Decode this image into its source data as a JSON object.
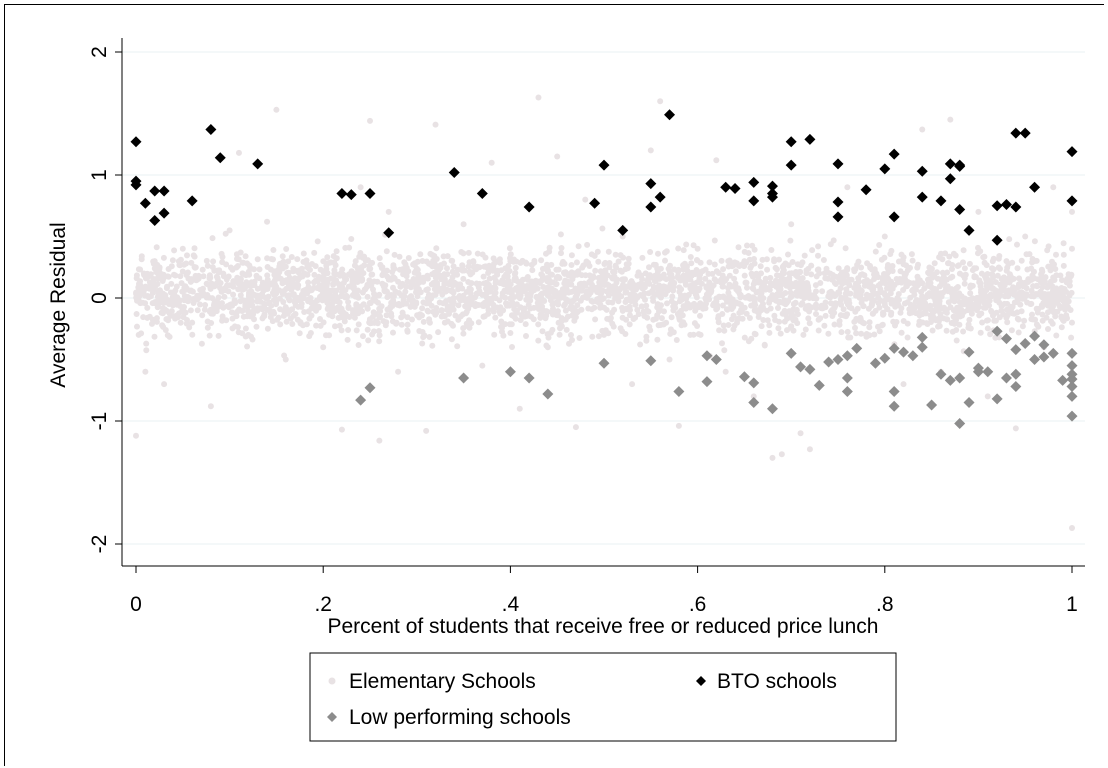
{
  "chart_data": {
    "type": "scatter",
    "title": "",
    "xlabel": "Percent of students that receive free or reduced price lunch",
    "ylabel": "Average Residual",
    "xlim": [
      0,
      1
    ],
    "ylim": [
      -2,
      2
    ],
    "x_ticks": [
      {
        "value": 0,
        "label": "0"
      },
      {
        "value": 0.2,
        "label": ".2"
      },
      {
        "value": 0.4,
        "label": ".4"
      },
      {
        "value": 0.6,
        "label": ".6"
      },
      {
        "value": 0.8,
        "label": ".8"
      },
      {
        "value": 1,
        "label": "1"
      }
    ],
    "y_ticks": [
      {
        "value": -2,
        "label": "-2"
      },
      {
        "value": -1,
        "label": "-1"
      },
      {
        "value": 0,
        "label": "0"
      },
      {
        "value": 1,
        "label": "1"
      },
      {
        "value": 2,
        "label": "2"
      }
    ],
    "grid": "horizontal",
    "legend_position": "bottom",
    "series": [
      {
        "name": "Elementary Schools",
        "color": "#e8e2e4",
        "marker": "circle",
        "points": [
          [
            0.0,
            -1.12
          ],
          [
            0.01,
            -0.6
          ],
          [
            0.02,
            0.3
          ],
          [
            0.03,
            -0.7
          ],
          [
            0.05,
            0.4
          ],
          [
            0.06,
            -0.2
          ],
          [
            0.08,
            -0.88
          ],
          [
            0.1,
            0.55
          ],
          [
            0.11,
            1.18
          ],
          [
            0.12,
            -0.3
          ],
          [
            0.14,
            0.62
          ],
          [
            0.15,
            1.53
          ],
          [
            0.16,
            -0.5
          ],
          [
            0.18,
            0.2
          ],
          [
            0.2,
            -0.4
          ],
          [
            0.22,
            -1.07
          ],
          [
            0.23,
            0.48
          ],
          [
            0.24,
            0.9
          ],
          [
            0.25,
            1.44
          ],
          [
            0.26,
            -1.16
          ],
          [
            0.27,
            0.7
          ],
          [
            0.28,
            -0.6
          ],
          [
            0.3,
            0.1
          ],
          [
            0.31,
            -1.08
          ],
          [
            0.32,
            1.41
          ],
          [
            0.33,
            -0.2
          ],
          [
            0.35,
            0.6
          ],
          [
            0.37,
            -0.55
          ],
          [
            0.38,
            1.1
          ],
          [
            0.4,
            0.3
          ],
          [
            0.41,
            -0.9
          ],
          [
            0.43,
            1.63
          ],
          [
            0.44,
            -0.4
          ],
          [
            0.45,
            1.15
          ],
          [
            0.46,
            0.2
          ],
          [
            0.47,
            -1.05
          ],
          [
            0.48,
            0.8
          ],
          [
            0.5,
            -0.3
          ],
          [
            0.52,
            0.5
          ],
          [
            0.53,
            -0.7
          ],
          [
            0.55,
            1.2
          ],
          [
            0.56,
            1.6
          ],
          [
            0.57,
            -0.5
          ],
          [
            0.58,
            -1.04
          ],
          [
            0.6,
            0.4
          ],
          [
            0.62,
            1.12
          ],
          [
            0.63,
            -0.6
          ],
          [
            0.65,
            0.3
          ],
          [
            0.66,
            -0.8
          ],
          [
            0.68,
            -1.3
          ],
          [
            0.69,
            -1.27
          ],
          [
            0.7,
            0.6
          ],
          [
            0.71,
            -1.1
          ],
          [
            0.72,
            -1.23
          ],
          [
            0.73,
            0.2
          ],
          [
            0.75,
            -0.5
          ],
          [
            0.76,
            0.9
          ],
          [
            0.78,
            -0.3
          ],
          [
            0.8,
            0.5
          ],
          [
            0.82,
            -0.7
          ],
          [
            0.84,
            1.37
          ],
          [
            0.85,
            0.2
          ],
          [
            0.86,
            -0.6
          ],
          [
            0.87,
            1.45
          ],
          [
            0.88,
            -0.1
          ],
          [
            0.9,
            0.7
          ],
          [
            0.91,
            -0.8
          ],
          [
            0.93,
            0.3
          ],
          [
            0.94,
            -1.06
          ],
          [
            0.95,
            0.5
          ],
          [
            0.97,
            -0.4
          ],
          [
            0.98,
            0.9
          ],
          [
            1.0,
            -1.87
          ],
          [
            1.0,
            0.4
          ],
          [
            1.0,
            -0.2
          ],
          [
            1.0,
            0.7
          ]
        ],
        "dense_band": {
          "y_center": 0.05,
          "y_spread": 0.42,
          "count": 3400
        }
      },
      {
        "name": "BTO schools",
        "color": "#000000",
        "marker": "diamond",
        "points": [
          [
            0.0,
            1.27
          ],
          [
            0.0,
            0.95
          ],
          [
            0.0,
            0.92
          ],
          [
            0.01,
            0.77
          ],
          [
            0.02,
            0.63
          ],
          [
            0.02,
            0.87
          ],
          [
            0.03,
            0.87
          ],
          [
            0.03,
            0.69
          ],
          [
            0.06,
            0.79
          ],
          [
            0.08,
            1.37
          ],
          [
            0.09,
            1.14
          ],
          [
            0.13,
            1.09
          ],
          [
            0.22,
            0.85
          ],
          [
            0.23,
            0.84
          ],
          [
            0.25,
            0.85
          ],
          [
            0.27,
            0.53
          ],
          [
            0.34,
            1.02
          ],
          [
            0.37,
            0.85
          ],
          [
            0.42,
            0.74
          ],
          [
            0.49,
            0.77
          ],
          [
            0.5,
            1.08
          ],
          [
            0.52,
            0.55
          ],
          [
            0.55,
            0.93
          ],
          [
            0.55,
            0.74
          ],
          [
            0.56,
            0.82
          ],
          [
            0.57,
            1.49
          ],
          [
            0.63,
            0.9
          ],
          [
            0.64,
            0.89
          ],
          [
            0.66,
            0.79
          ],
          [
            0.66,
            0.94
          ],
          [
            0.68,
            0.91
          ],
          [
            0.68,
            0.85
          ],
          [
            0.68,
            0.82
          ],
          [
            0.7,
            1.08
          ],
          [
            0.7,
            1.27
          ],
          [
            0.72,
            1.29
          ],
          [
            0.75,
            0.66
          ],
          [
            0.75,
            0.78
          ],
          [
            0.75,
            1.09
          ],
          [
            0.78,
            0.88
          ],
          [
            0.8,
            1.05
          ],
          [
            0.81,
            1.17
          ],
          [
            0.81,
            0.66
          ],
          [
            0.84,
            1.03
          ],
          [
            0.84,
            0.82
          ],
          [
            0.86,
            0.79
          ],
          [
            0.87,
            1.09
          ],
          [
            0.87,
            0.97
          ],
          [
            0.88,
            1.08
          ],
          [
            0.88,
            0.72
          ],
          [
            0.88,
            1.07
          ],
          [
            0.89,
            0.55
          ],
          [
            0.92,
            0.47
          ],
          [
            0.92,
            0.75
          ],
          [
            0.93,
            0.76
          ],
          [
            0.94,
            0.74
          ],
          [
            0.94,
            1.34
          ],
          [
            0.95,
            1.34
          ],
          [
            0.96,
            0.9
          ],
          [
            1.0,
            1.19
          ],
          [
            1.0,
            0.79
          ]
        ]
      },
      {
        "name": "Low performing schools",
        "color": "#8c8c8c",
        "marker": "diamond",
        "points": [
          [
            0.24,
            -0.83
          ],
          [
            0.25,
            -0.73
          ],
          [
            0.35,
            -0.65
          ],
          [
            0.4,
            -0.6
          ],
          [
            0.42,
            -0.65
          ],
          [
            0.44,
            -0.78
          ],
          [
            0.5,
            -0.53
          ],
          [
            0.55,
            -0.51
          ],
          [
            0.58,
            -0.76
          ],
          [
            0.61,
            -0.47
          ],
          [
            0.61,
            -0.68
          ],
          [
            0.62,
            -0.5
          ],
          [
            0.65,
            -0.64
          ],
          [
            0.66,
            -0.69
          ],
          [
            0.66,
            -0.85
          ],
          [
            0.68,
            -0.9
          ],
          [
            0.7,
            -0.45
          ],
          [
            0.71,
            -0.56
          ],
          [
            0.72,
            -0.58
          ],
          [
            0.73,
            -0.71
          ],
          [
            0.74,
            -0.52
          ],
          [
            0.75,
            -0.5
          ],
          [
            0.76,
            -0.65
          ],
          [
            0.76,
            -0.76
          ],
          [
            0.76,
            -0.47
          ],
          [
            0.77,
            -0.41
          ],
          [
            0.79,
            -0.53
          ],
          [
            0.8,
            -0.49
          ],
          [
            0.81,
            -0.41
          ],
          [
            0.81,
            -0.76
          ],
          [
            0.81,
            -0.88
          ],
          [
            0.82,
            -0.44
          ],
          [
            0.83,
            -0.47
          ],
          [
            0.84,
            -0.32
          ],
          [
            0.84,
            -0.4
          ],
          [
            0.85,
            -0.87
          ],
          [
            0.86,
            -0.62
          ],
          [
            0.87,
            -0.67
          ],
          [
            0.88,
            -1.02
          ],
          [
            0.88,
            -0.65
          ],
          [
            0.89,
            -0.44
          ],
          [
            0.89,
            -0.85
          ],
          [
            0.9,
            -0.6
          ],
          [
            0.9,
            -0.57
          ],
          [
            0.91,
            -0.6
          ],
          [
            0.92,
            -0.27
          ],
          [
            0.92,
            -0.82
          ],
          [
            0.93,
            -0.65
          ],
          [
            0.93,
            -0.33
          ],
          [
            0.94,
            -0.42
          ],
          [
            0.94,
            -0.62
          ],
          [
            0.94,
            -0.72
          ],
          [
            0.95,
            -0.37
          ],
          [
            0.96,
            -0.31
          ],
          [
            0.96,
            -0.5
          ],
          [
            0.97,
            -0.38
          ],
          [
            0.97,
            -0.48
          ],
          [
            0.98,
            -0.45
          ],
          [
            0.99,
            -0.67
          ],
          [
            1.0,
            -0.45
          ],
          [
            1.0,
            -0.55
          ],
          [
            1.0,
            -0.62
          ],
          [
            1.0,
            -0.66
          ],
          [
            1.0,
            -0.72
          ],
          [
            1.0,
            -0.8
          ],
          [
            1.0,
            -0.96
          ]
        ]
      }
    ]
  }
}
